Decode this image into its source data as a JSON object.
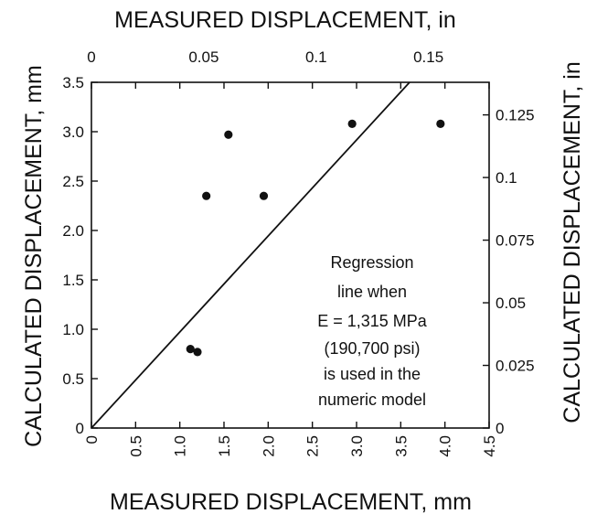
{
  "chart_data": {
    "type": "scatter",
    "xlabel": "MEASURED DISPLACEMENT, mm",
    "ylabel": "CALCULATED DISPLACEMENT, mm",
    "x2label": "MEASURED DISPLACEMENT, in",
    "y2label": "CALCULATED DISPLACEMENT, in",
    "xlim": [
      0,
      4.5
    ],
    "ylim": [
      0,
      3.5
    ],
    "x2lim": [
      0,
      0.177
    ],
    "y2lim": [
      0,
      0.138
    ],
    "x_ticks": [
      "0",
      "0.5",
      "1.0",
      "1.5",
      "2.0",
      "2.5",
      "3.0",
      "3.5",
      "4.0",
      "4.5"
    ],
    "y_ticks": [
      "0",
      "0.5",
      "1.0",
      "1.5",
      "2.0",
      "2.5",
      "3.0",
      "3.5"
    ],
    "x2_ticks": [
      {
        "value": 0,
        "label": "0"
      },
      {
        "value": 0.05,
        "label": "0.05"
      },
      {
        "value": 0.1,
        "label": "0.1"
      },
      {
        "value": 0.15,
        "label": "0.15"
      }
    ],
    "y2_ticks": [
      {
        "value": 0,
        "label": "0"
      },
      {
        "value": 0.025,
        "label": "0.025"
      },
      {
        "value": 0.05,
        "label": "0.05"
      },
      {
        "value": 0.075,
        "label": "0.075"
      },
      {
        "value": 0.1,
        "label": "0.1"
      },
      {
        "value": 0.125,
        "label": "0.125"
      }
    ],
    "points": [
      {
        "x": 1.12,
        "y": 0.8
      },
      {
        "x": 1.2,
        "y": 0.77
      },
      {
        "x": 1.3,
        "y": 2.35
      },
      {
        "x": 1.55,
        "y": 2.97
      },
      {
        "x": 1.95,
        "y": 2.35
      },
      {
        "x": 2.95,
        "y": 3.08
      },
      {
        "x": 3.95,
        "y": 3.08
      }
    ],
    "regression_line": {
      "x": [
        0,
        3.6
      ],
      "y": [
        0,
        3.5
      ]
    },
    "annotation": [
      "Regression",
      "line when",
      "E = 1,315 MPa",
      "(190,700 psi)",
      "is used in the",
      "numeric model"
    ],
    "grid": false
  }
}
